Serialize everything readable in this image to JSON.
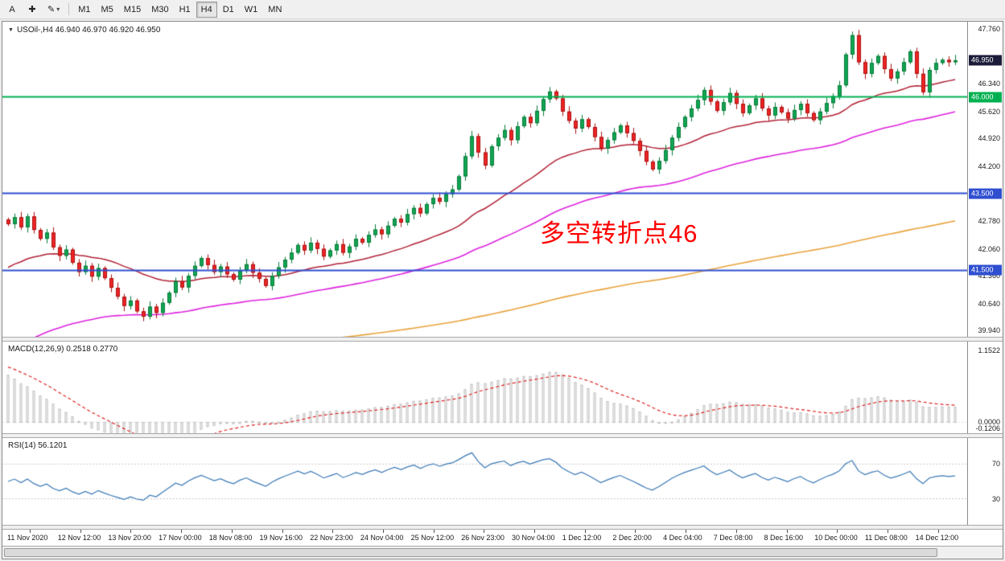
{
  "toolbar": {
    "arrow_button_label": "A",
    "icons": {
      "crosshair_glyph": "✚",
      "pencil_glyph": "✎",
      "caret_glyph": "▾"
    },
    "timeframes": [
      {
        "label": "M1",
        "active": false
      },
      {
        "label": "M5",
        "active": false
      },
      {
        "label": "M15",
        "active": false
      },
      {
        "label": "M30",
        "active": false
      },
      {
        "label": "H1",
        "active": false
      },
      {
        "label": "H4",
        "active": true
      },
      {
        "label": "D1",
        "active": false
      },
      {
        "label": "W1",
        "active": false
      },
      {
        "label": "MN",
        "active": false
      }
    ]
  },
  "chart": {
    "marker_glyph": "▼",
    "symbol_header": "USOil-,H4  46.940 46.970 46.920 46.950",
    "annotation": {
      "text": "多空转折点46",
      "color": "#ff0000"
    },
    "price_axis": {
      "labels": [
        "47.760",
        "46.340",
        "45.620",
        "44.920",
        "44.200",
        "42.780",
        "42.060",
        "41.360",
        "40.640",
        "39.940"
      ],
      "badges": [
        {
          "value": "46.950",
          "bg": "#1c1c3a"
        },
        {
          "value": "46.000",
          "bg": "#00b050"
        },
        {
          "value": "43.500",
          "bg": "#2f4fd0"
        },
        {
          "value": "41.500",
          "bg": "#2f4fd0"
        }
      ]
    },
    "hlines": [
      {
        "value": 46.0,
        "color": "#00b050",
        "width": 2
      },
      {
        "value": 43.5,
        "color": "#2f4fd0",
        "width": 2
      },
      {
        "value": 41.5,
        "color": "#2f4fd0",
        "width": 2
      }
    ]
  },
  "macd": {
    "header": "MACD(12,26,9) 0.2518 0.2770",
    "axis_labels": [
      "1.1522",
      "0.0000",
      "-0.1206"
    ]
  },
  "rsi": {
    "header": "RSI(14) 56.1201",
    "levels": [
      "70",
      "30"
    ]
  },
  "time_axis": {
    "labels": [
      "11 Nov 2020",
      "12 Nov 12:00",
      "13 Nov 20:00",
      "17 Nov 00:00",
      "18 Nov 08:00",
      "19 Nov 16:00",
      "22 Nov 23:00",
      "24 Nov 04:00",
      "25 Nov 12:00",
      "26 Nov 23:00",
      "30 Nov 04:00",
      "1 Dec 12:00",
      "2 Dec 20:00",
      "4 Dec 04:00",
      "7 Dec 08:00",
      "8 Dec 16:00",
      "10 Dec 00:00",
      "11 Dec 08:00",
      "14 Dec 12:00"
    ]
  },
  "chart_data": {
    "type": "candlestick",
    "symbol": "USOil-",
    "timeframe": "H4",
    "quote": {
      "open": "46.940",
      "high": "46.970",
      "low": "46.920",
      "close": "46.950"
    },
    "y_range": [
      39.78,
      47.95
    ],
    "macd_range": [
      -0.18,
      1.3
    ],
    "rsi_range": [
      0,
      100
    ],
    "rsi_levels": [
      30,
      70
    ],
    "macd_current": 0.2518,
    "macd_signal_current": 0.277,
    "rsi_current": 56.1201,
    "closes": [
      42.7,
      42.88,
      42.62,
      42.9,
      42.55,
      42.32,
      42.48,
      42.1,
      41.88,
      42.04,
      41.7,
      41.46,
      41.62,
      41.34,
      41.56,
      41.3,
      41.05,
      40.82,
      40.58,
      40.72,
      40.44,
      40.3,
      40.56,
      40.4,
      40.66,
      40.92,
      41.22,
      41.06,
      41.36,
      41.62,
      41.82,
      41.64,
      41.46,
      41.6,
      41.4,
      41.26,
      41.5,
      41.66,
      41.44,
      41.28,
      41.1,
      41.36,
      41.58,
      41.78,
      41.96,
      42.16,
      42.02,
      42.22,
      42.06,
      41.86,
      42.02,
      42.18,
      41.96,
      42.12,
      42.32,
      42.22,
      42.42,
      42.56,
      42.44,
      42.66,
      42.84,
      42.74,
      42.96,
      43.12,
      42.98,
      43.22,
      43.38,
      43.28,
      43.48,
      43.6,
      43.94,
      44.46,
      44.98,
      44.56,
      44.22,
      44.72,
      44.94,
      45.14,
      44.88,
      45.24,
      45.48,
      45.32,
      45.64,
      45.94,
      46.14,
      45.96,
      45.62,
      45.38,
      45.18,
      45.42,
      45.22,
      44.96,
      44.66,
      44.88,
      45.08,
      45.26,
      45.06,
      44.86,
      44.6,
      44.32,
      44.12,
      44.34,
      44.62,
      44.94,
      45.22,
      45.48,
      45.7,
      45.92,
      46.18,
      45.88,
      45.64,
      45.86,
      46.1,
      45.82,
      45.58,
      45.78,
      45.96,
      45.7,
      45.52,
      45.74,
      45.6,
      45.44,
      45.66,
      45.82,
      45.58,
      45.4,
      45.62,
      45.84,
      46.02,
      46.3,
      47.1,
      47.6,
      46.9,
      46.6,
      46.88,
      47.06,
      46.72,
      46.48,
      46.66,
      46.9,
      47.18,
      46.6,
      46.12,
      46.7,
      46.88,
      46.96,
      46.9,
      46.95
    ]
  },
  "colors": {
    "up_candle": "#11a653",
    "up_stroke": "#077a39",
    "down_candle": "#ef2424",
    "down_stroke": "#a81111",
    "ma_fast": "#b02035",
    "ma_mid": "#dd22dd",
    "ma_slow": "#e8a33c",
    "macd_hist": "#b9b9b9",
    "macd_signal": "#dd2222",
    "rsi_line": "#3a78b5",
    "level_line": "#c9c9c9"
  }
}
